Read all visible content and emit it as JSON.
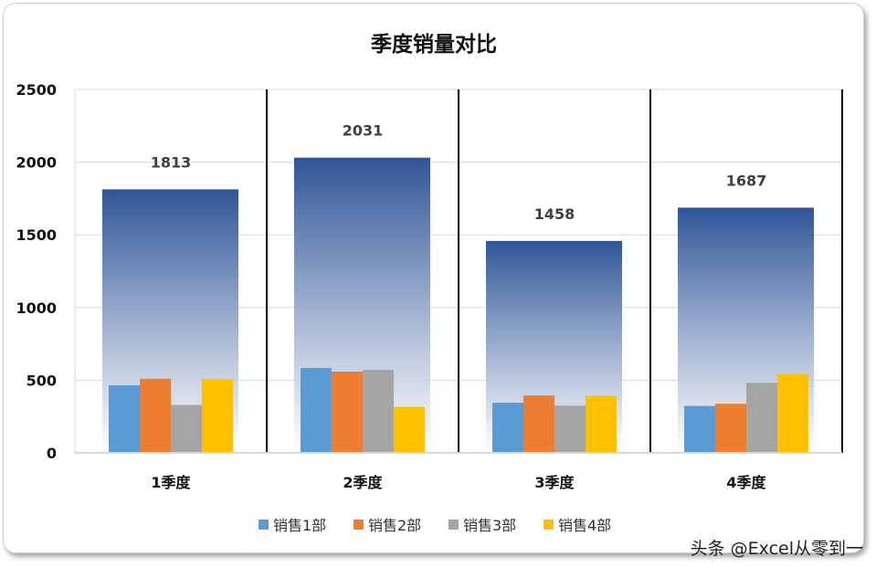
{
  "chart_data": {
    "type": "bar",
    "title": "季度销量对比",
    "categories": [
      "1季度",
      "2季度",
      "3季度",
      "4季度"
    ],
    "totals": [
      1813,
      2031,
      1458,
      1687
    ],
    "series": [
      {
        "name": "销售1部",
        "color": "#5b9bd5",
        "values": [
          465,
          584,
          345,
          323
        ]
      },
      {
        "name": "销售2部",
        "color": "#ed7d31",
        "values": [
          510,
          559,
          395,
          338
        ]
      },
      {
        "name": "销售3部",
        "color": "#a5a5a5",
        "values": [
          330,
          571,
          325,
          482
        ]
      },
      {
        "name": "销售4部",
        "color": "#ffc000",
        "values": [
          508,
          317,
          393,
          544
        ]
      }
    ],
    "total_color": "#2f5597",
    "ylim": [
      0,
      2500
    ],
    "yticks": [
      0,
      500,
      1000,
      1500,
      2000,
      2500
    ],
    "grid": true,
    "legend": "bottom"
  },
  "watermark": "头条 @Excel从零到一"
}
